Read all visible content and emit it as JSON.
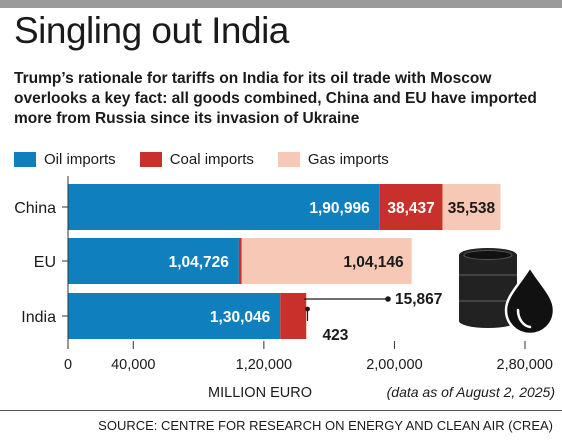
{
  "title": "Singling out India",
  "subtitle": "Trump’s rationale for tariffs on India for its oil trade with Moscow overlooks a key fact: all goods combined, China and EU have imported more from Russia since its invasion of Ukraine",
  "source": "SOURCE: CENTRE FOR RESEARCH ON ENERGY AND CLEAN AIR (CREA)",
  "colors": {
    "oil": "#0f7fbd",
    "coal": "#c8302c",
    "gas": "#f7c8b6",
    "text": "#1a1a1a"
  },
  "chart_data": {
    "type": "bar",
    "orientation": "horizontal",
    "stacked": true,
    "categories": [
      "China",
      "EU",
      "India"
    ],
    "series": [
      {
        "name": "Oil imports",
        "values": [
          190996,
          104726,
          130046
        ],
        "labels": [
          "1,90,996",
          "1,04,726",
          "1,30,046"
        ]
      },
      {
        "name": "Coal imports",
        "values": [
          38437,
          1700,
          15867
        ],
        "labels": [
          "38,437",
          "",
          "15,867"
        ]
      },
      {
        "name": "Gas imports",
        "values": [
          35538,
          104146,
          423
        ],
        "labels": [
          "35,538",
          "1,04,146",
          "423"
        ]
      }
    ],
    "xlim": [
      0,
      280000
    ],
    "xticks": [
      0,
      40000,
      120000,
      200000,
      280000
    ],
    "xtick_labels": [
      "0",
      "40,000",
      "1,20,000",
      "2,00,000",
      "2,80,000"
    ],
    "xlabel": "MILLION EURO",
    "note": "(data as of August 2, 2025)",
    "legend_position": "top",
    "grid": false
  },
  "icon": "oil-barrel-icon"
}
